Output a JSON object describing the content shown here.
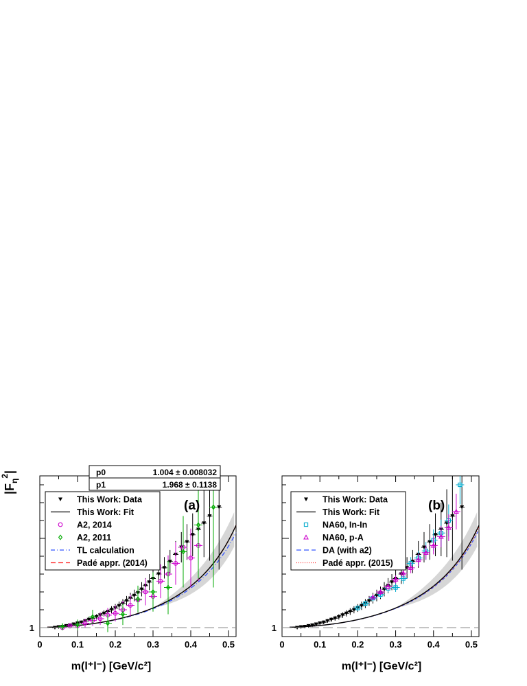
{
  "chart_data": [
    {
      "panel_label": "(a)",
      "type": "scatter",
      "ylabel": "|F_η|²",
      "xlabel": "m(l⁺l⁻)  [GeV/c²]",
      "xlim": [
        0,
        0.52
      ],
      "ylim": [
        0.9,
        2.7
      ],
      "x_ticks": [
        "0",
        "0.1",
        "0.2",
        "0.3",
        "0.4",
        "0.5"
      ],
      "y_tick_labels": [
        "1"
      ],
      "reference_line": 1,
      "legend_position": "top-left",
      "fit_box": {
        "p0_label": "p0",
        "p0_value": "1.004 ± 0.008032",
        "p1_label": "p1",
        "p1_value": "1.968 ± 0.1138"
      },
      "legend": [
        {
          "label": "This Work: Data",
          "color": "#000000",
          "symbol": "triangle-down"
        },
        {
          "label": "This Work: Fit",
          "color": "#000000",
          "symbol": "line"
        },
        {
          "label": "A2, 2014",
          "color": "#cc00cc",
          "symbol": "circle"
        },
        {
          "label": "A2, 2011",
          "color": "#00aa00",
          "symbol": "diamond"
        },
        {
          "label": "TL calculation",
          "color": "#3355ff",
          "symbol": "dashdot"
        },
        {
          "label": "Padé appr. (2014)",
          "color": "#ff2222",
          "symbol": "dash"
        }
      ],
      "series": [
        {
          "name": "This Work: Data",
          "color": "#000000",
          "marker": "triangle-down",
          "points": [
            [
              0.04,
              1.0,
              0.006
            ],
            [
              0.05,
              1.008,
              0.008
            ],
            [
              0.06,
              1.012,
              0.01
            ],
            [
              0.07,
              1.02,
              0.012
            ],
            [
              0.08,
              1.028,
              0.014
            ],
            [
              0.09,
              1.038,
              0.016
            ],
            [
              0.1,
              1.05,
              0.018
            ],
            [
              0.11,
              1.06,
              0.02
            ],
            [
              0.12,
              1.075,
              0.022
            ],
            [
              0.13,
              1.09,
              0.025
            ],
            [
              0.14,
              1.105,
              0.027
            ],
            [
              0.15,
              1.12,
              0.03
            ],
            [
              0.16,
              1.14,
              0.032
            ],
            [
              0.17,
              1.16,
              0.035
            ],
            [
              0.18,
              1.18,
              0.038
            ],
            [
              0.19,
              1.2,
              0.04
            ],
            [
              0.2,
              1.22,
              0.044
            ],
            [
              0.21,
              1.245,
              0.047
            ],
            [
              0.22,
              1.27,
              0.05
            ],
            [
              0.23,
              1.3,
              0.055
            ],
            [
              0.24,
              1.33,
              0.06
            ],
            [
              0.25,
              1.36,
              0.065
            ],
            [
              0.26,
              1.39,
              0.07
            ],
            [
              0.27,
              1.43,
              0.08
            ],
            [
              0.28,
              1.47,
              0.085
            ],
            [
              0.29,
              1.51,
              0.09
            ],
            [
              0.3,
              1.55,
              0.1
            ],
            [
              0.315,
              1.6,
              0.11
            ],
            [
              0.33,
              1.67,
              0.12
            ],
            [
              0.345,
              1.74,
              0.13
            ],
            [
              0.36,
              1.82,
              0.15
            ],
            [
              0.375,
              1.9,
              0.17
            ],
            [
              0.39,
              1.96,
              0.2
            ],
            [
              0.405,
              2.04,
              0.24
            ],
            [
              0.42,
              2.1,
              0.3
            ],
            [
              0.435,
              2.17,
              0.38
            ],
            [
              0.45,
              2.25,
              0.5
            ],
            [
              0.475,
              2.35,
              0.7
            ]
          ]
        },
        {
          "name": "A2, 2014",
          "color": "#cc00cc",
          "marker": "circle",
          "points": [
            [
              0.06,
              1.0,
              0.02
            ],
            [
              0.08,
              1.02,
              0.03
            ],
            [
              0.1,
              1.02,
              0.04
            ],
            [
              0.12,
              1.05,
              0.05
            ],
            [
              0.14,
              1.08,
              0.06
            ],
            [
              0.16,
              1.1,
              0.07
            ],
            [
              0.18,
              1.14,
              0.08
            ],
            [
              0.2,
              1.16,
              0.09
            ],
            [
              0.22,
              1.2,
              0.1
            ],
            [
              0.24,
              1.25,
              0.12
            ],
            [
              0.26,
              1.31,
              0.14
            ],
            [
              0.28,
              1.4,
              0.15
            ],
            [
              0.3,
              1.35,
              0.17
            ],
            [
              0.32,
              1.52,
              0.19
            ],
            [
              0.34,
              1.6,
              0.21
            ],
            [
              0.36,
              1.72,
              0.24
            ],
            [
              0.38,
              1.9,
              0.28
            ],
            [
              0.4,
              1.78,
              0.33
            ],
            [
              0.42,
              1.92,
              0.4
            ]
          ]
        },
        {
          "name": "A2, 2011",
          "color": "#00aa00",
          "marker": "diamond",
          "points": [
            [
              0.06,
              1.01,
              0.04
            ],
            [
              0.1,
              1.03,
              0.06
            ],
            [
              0.14,
              1.12,
              0.08
            ],
            [
              0.18,
              1.05,
              0.1
            ],
            [
              0.22,
              1.15,
              0.12
            ],
            [
              0.26,
              1.32,
              0.15
            ],
            [
              0.3,
              1.4,
              0.22
            ],
            [
              0.34,
              1.45,
              0.3
            ],
            [
              0.38,
              1.85,
              0.4
            ],
            [
              0.42,
              2.15,
              0.6
            ],
            [
              0.46,
              2.35,
              0.9
            ]
          ]
        }
      ]
    },
    {
      "panel_label": "(b)",
      "type": "scatter",
      "ylabel": "",
      "xlabel": "m(l⁺l⁻)  [GeV/c²]",
      "xlim": [
        0,
        0.52
      ],
      "ylim": [
        0.9,
        2.7
      ],
      "x_ticks": [
        "0",
        "0.1",
        "0.2",
        "0.3",
        "0.4",
        "0.5"
      ],
      "y_tick_labels": [
        "1"
      ],
      "reference_line": 1,
      "legend_position": "top-left",
      "legend": [
        {
          "label": "This Work: Data",
          "color": "#000000",
          "symbol": "triangle-down"
        },
        {
          "label": "This Work: Fit",
          "color": "#000000",
          "symbol": "line"
        },
        {
          "label": "NA60, In-In",
          "color": "#00aacc",
          "symbol": "square"
        },
        {
          "label": "NA60, p-A",
          "color": "#cc00cc",
          "symbol": "triangle"
        },
        {
          "label": "DA (with a2)",
          "color": "#3355ff",
          "symbol": "dash"
        },
        {
          "label": "Padé appr. (2015)",
          "color": "#ff2222",
          "symbol": "dot"
        }
      ],
      "series": [
        {
          "name": "This Work: Data",
          "color": "#000000",
          "marker": "triangle-down",
          "points": [
            [
              0.04,
              1.0,
              0.006
            ],
            [
              0.05,
              1.008,
              0.008
            ],
            [
              0.06,
              1.012,
              0.01
            ],
            [
              0.07,
              1.02,
              0.012
            ],
            [
              0.08,
              1.028,
              0.014
            ],
            [
              0.09,
              1.038,
              0.016
            ],
            [
              0.1,
              1.05,
              0.018
            ],
            [
              0.11,
              1.06,
              0.02
            ],
            [
              0.12,
              1.075,
              0.022
            ],
            [
              0.13,
              1.09,
              0.025
            ],
            [
              0.14,
              1.105,
              0.027
            ],
            [
              0.15,
              1.12,
              0.03
            ],
            [
              0.16,
              1.14,
              0.032
            ],
            [
              0.17,
              1.16,
              0.035
            ],
            [
              0.18,
              1.18,
              0.038
            ],
            [
              0.19,
              1.2,
              0.04
            ],
            [
              0.2,
              1.22,
              0.044
            ],
            [
              0.21,
              1.245,
              0.047
            ],
            [
              0.22,
              1.27,
              0.05
            ],
            [
              0.23,
              1.3,
              0.055
            ],
            [
              0.24,
              1.33,
              0.06
            ],
            [
              0.25,
              1.36,
              0.065
            ],
            [
              0.26,
              1.39,
              0.07
            ],
            [
              0.27,
              1.43,
              0.08
            ],
            [
              0.28,
              1.47,
              0.085
            ],
            [
              0.29,
              1.51,
              0.09
            ],
            [
              0.3,
              1.55,
              0.1
            ],
            [
              0.315,
              1.6,
              0.11
            ],
            [
              0.33,
              1.67,
              0.12
            ],
            [
              0.345,
              1.74,
              0.13
            ],
            [
              0.36,
              1.82,
              0.15
            ],
            [
              0.375,
              1.9,
              0.17
            ],
            [
              0.39,
              1.96,
              0.2
            ],
            [
              0.405,
              2.04,
              0.24
            ],
            [
              0.42,
              2.1,
              0.3
            ],
            [
              0.435,
              2.17,
              0.38
            ],
            [
              0.45,
              2.25,
              0.5
            ],
            [
              0.475,
              2.35,
              0.7
            ]
          ]
        },
        {
          "name": "NA60, In-In",
          "color": "#00aacc",
          "marker": "square",
          "points": [
            [
              0.2,
              1.22,
              0.03
            ],
            [
              0.22,
              1.27,
              0.03
            ],
            [
              0.24,
              1.33,
              0.035
            ],
            [
              0.26,
              1.37,
              0.04
            ],
            [
              0.28,
              1.44,
              0.045
            ],
            [
              0.3,
              1.45,
              0.05
            ],
            [
              0.32,
              1.55,
              0.06
            ],
            [
              0.34,
              1.72,
              0.07
            ],
            [
              0.36,
              1.78,
              0.08
            ],
            [
              0.38,
              1.86,
              0.1
            ],
            [
              0.4,
              1.98,
              0.12
            ],
            [
              0.42,
              2.06,
              0.15
            ],
            [
              0.44,
              2.2,
              0.18
            ],
            [
              0.47,
              2.6,
              0.22
            ]
          ]
        },
        {
          "name": "NA60, p-A",
          "color": "#cc00cc",
          "marker": "triangle",
          "points": [
            [
              0.24,
              1.34,
              0.03
            ],
            [
              0.26,
              1.4,
              0.035
            ],
            [
              0.28,
              1.46,
              0.04
            ],
            [
              0.3,
              1.54,
              0.045
            ],
            [
              0.32,
              1.61,
              0.05
            ],
            [
              0.34,
              1.67,
              0.06
            ],
            [
              0.36,
              1.76,
              0.07
            ],
            [
              0.38,
              1.84,
              0.08
            ],
            [
              0.4,
              1.92,
              0.1
            ],
            [
              0.42,
              2.02,
              0.12
            ],
            [
              0.44,
              2.12,
              0.15
            ],
            [
              0.46,
              2.3,
              0.2
            ]
          ]
        }
      ]
    }
  ]
}
